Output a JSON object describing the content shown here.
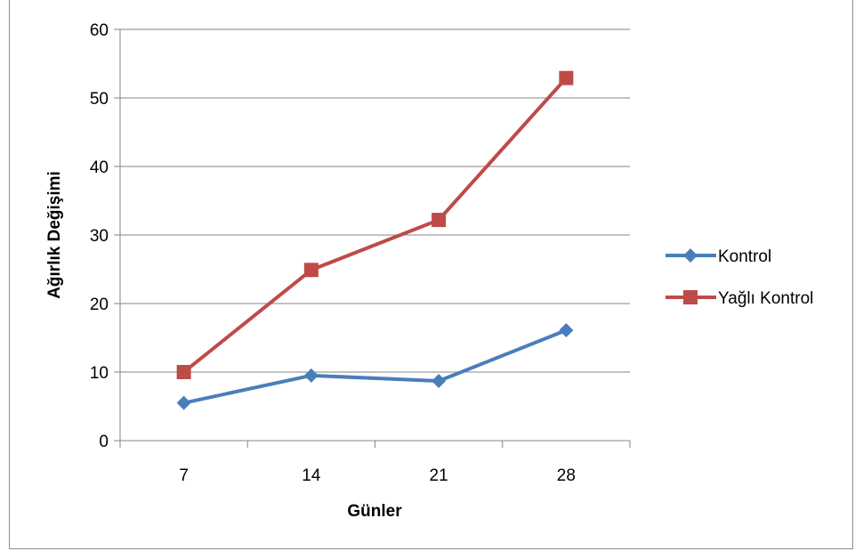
{
  "chart_data": {
    "type": "line",
    "title": "",
    "xlabel": "Günler",
    "ylabel": "Ağırlık Değişimi",
    "categories": [
      "7",
      "14",
      "21",
      "28"
    ],
    "ylim": [
      0,
      60
    ],
    "yticks": [
      "0",
      "10",
      "20",
      "30",
      "40",
      "50",
      "60"
    ],
    "grid": true,
    "legend_position": "right",
    "series": [
      {
        "name": "Kontrol",
        "values": [
          5.5,
          9.5,
          8.7,
          16.1
        ],
        "color": "#4a7ebb",
        "marker": "diamond"
      },
      {
        "name": "Yağlı Kontrol",
        "values": [
          10.0,
          24.9,
          32.2,
          52.9
        ],
        "color": "#be4b48",
        "marker": "square"
      }
    ]
  }
}
